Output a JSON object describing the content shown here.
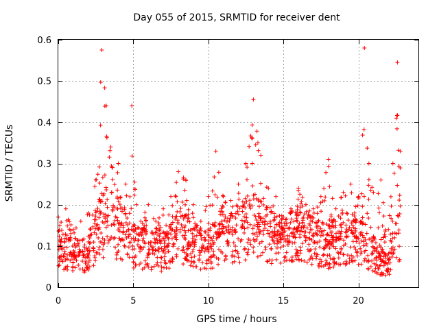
{
  "chart_data": {
    "type": "scatter",
    "title": "Day 055 of 2015, SRMTID for receiver dent",
    "xlabel": "GPS time / hours",
    "ylabel": "SRMTID / TECUs",
    "xlim": [
      0,
      24
    ],
    "ylim": [
      0,
      0.6
    ],
    "x_ticks": [
      0,
      5,
      10,
      15,
      20
    ],
    "y_ticks": [
      0,
      0.1,
      0.2,
      0.3,
      0.4,
      0.5,
      0.6
    ],
    "x_tick_labels": [
      "0",
      "5",
      "10",
      "15",
      "20"
    ],
    "y_tick_labels": [
      "0",
      "0.1",
      "0.2",
      "0.3",
      "0.4",
      "0.5",
      "0.6"
    ],
    "grid": true,
    "marker": "+",
    "marker_color": "#ff0000",
    "series": [
      {
        "name": "SRMTID",
        "envelope": [
          {
            "x": 0.0,
            "y": 0.17
          },
          {
            "x": 0.5,
            "y": 0.19
          },
          {
            "x": 1.0,
            "y": 0.14
          },
          {
            "x": 1.5,
            "y": 0.16
          },
          {
            "x": 2.0,
            "y": 0.18
          },
          {
            "x": 2.5,
            "y": 0.26
          },
          {
            "x": 2.9,
            "y": 0.575
          },
          {
            "x": 3.2,
            "y": 0.44
          },
          {
            "x": 3.5,
            "y": 0.34
          },
          {
            "x": 4.0,
            "y": 0.3
          },
          {
            "x": 4.5,
            "y": 0.25
          },
          {
            "x": 4.9,
            "y": 0.44
          },
          {
            "x": 5.2,
            "y": 0.2
          },
          {
            "x": 5.5,
            "y": 0.16
          },
          {
            "x": 6.0,
            "y": 0.2
          },
          {
            "x": 6.5,
            "y": 0.16
          },
          {
            "x": 7.0,
            "y": 0.19
          },
          {
            "x": 7.5,
            "y": 0.22
          },
          {
            "x": 8.0,
            "y": 0.28
          },
          {
            "x": 8.5,
            "y": 0.26
          },
          {
            "x": 9.0,
            "y": 0.2
          },
          {
            "x": 9.5,
            "y": 0.16
          },
          {
            "x": 10.0,
            "y": 0.22
          },
          {
            "x": 10.5,
            "y": 0.33
          },
          {
            "x": 11.0,
            "y": 0.22
          },
          {
            "x": 11.5,
            "y": 0.21
          },
          {
            "x": 12.0,
            "y": 0.25
          },
          {
            "x": 12.5,
            "y": 0.3
          },
          {
            "x": 13.0,
            "y": 0.455
          },
          {
            "x": 13.5,
            "y": 0.32
          },
          {
            "x": 14.0,
            "y": 0.24
          },
          {
            "x": 14.5,
            "y": 0.22
          },
          {
            "x": 15.0,
            "y": 0.17
          },
          {
            "x": 15.5,
            "y": 0.19
          },
          {
            "x": 16.0,
            "y": 0.24
          },
          {
            "x": 16.5,
            "y": 0.2
          },
          {
            "x": 17.0,
            "y": 0.19
          },
          {
            "x": 17.5,
            "y": 0.22
          },
          {
            "x": 18.0,
            "y": 0.31
          },
          {
            "x": 18.5,
            "y": 0.19
          },
          {
            "x": 19.0,
            "y": 0.23
          },
          {
            "x": 19.5,
            "y": 0.25
          },
          {
            "x": 20.0,
            "y": 0.22
          },
          {
            "x": 20.4,
            "y": 0.58
          },
          {
            "x": 20.7,
            "y": 0.3
          },
          {
            "x": 21.0,
            "y": 0.23
          },
          {
            "x": 21.5,
            "y": 0.26
          },
          {
            "x": 22.0,
            "y": 0.14
          },
          {
            "x": 22.3,
            "y": 0.3
          },
          {
            "x": 22.6,
            "y": 0.545
          },
          {
            "x": 22.8,
            "y": 0.33
          }
        ],
        "baseline": [
          {
            "x": 0.0,
            "y": 0.1
          },
          {
            "x": 1.0,
            "y": 0.075
          },
          {
            "x": 2.0,
            "y": 0.08
          },
          {
            "x": 3.0,
            "y": 0.16
          },
          {
            "x": 4.0,
            "y": 0.14
          },
          {
            "x": 5.0,
            "y": 0.1
          },
          {
            "x": 6.0,
            "y": 0.09
          },
          {
            "x": 7.0,
            "y": 0.085
          },
          {
            "x": 8.0,
            "y": 0.13
          },
          {
            "x": 9.0,
            "y": 0.1
          },
          {
            "x": 10.0,
            "y": 0.09
          },
          {
            "x": 11.0,
            "y": 0.13
          },
          {
            "x": 12.0,
            "y": 0.13
          },
          {
            "x": 13.0,
            "y": 0.15
          },
          {
            "x": 14.0,
            "y": 0.13
          },
          {
            "x": 15.0,
            "y": 0.11
          },
          {
            "x": 16.0,
            "y": 0.13
          },
          {
            "x": 17.0,
            "y": 0.11
          },
          {
            "x": 18.0,
            "y": 0.1
          },
          {
            "x": 19.0,
            "y": 0.12
          },
          {
            "x": 20.0,
            "y": 0.12
          },
          {
            "x": 21.0,
            "y": 0.08
          },
          {
            "x": 22.0,
            "y": 0.05
          },
          {
            "x": 22.8,
            "y": 0.15
          }
        ],
        "point_count": 1650
      }
    ]
  }
}
